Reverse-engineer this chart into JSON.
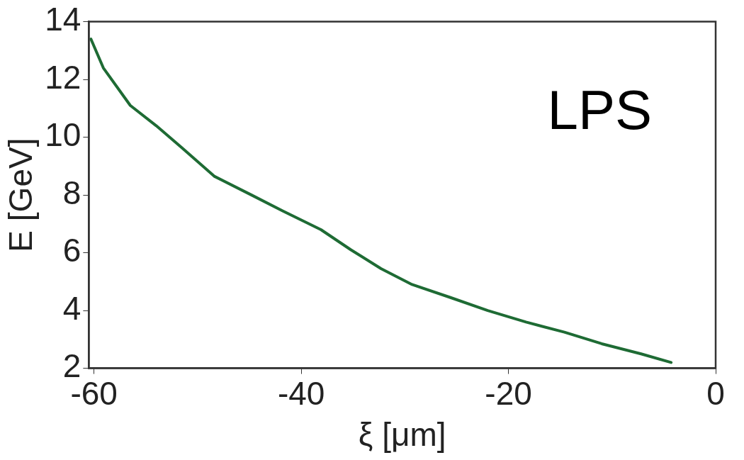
{
  "chart_data": {
    "type": "line",
    "xlabel": "ξ [μm]",
    "ylabel": "E [GeV]",
    "annotations": [
      "LPS"
    ],
    "x": [
      -60.3,
      -59.1,
      -56.5,
      -54,
      -51.4,
      -48.4,
      -44.8,
      -41.8,
      -38.1,
      -35.2,
      -32.3,
      -29.3,
      -25.6,
      -22,
      -18.3,
      -14.6,
      -11,
      -7.2,
      -4.3
    ],
    "series": [
      {
        "color": "#1e6b34",
        "values": [
          13.4,
          12.4,
          11.1,
          10.4,
          9.6,
          8.65,
          8.0,
          7.45,
          6.8,
          6.1,
          5.45,
          4.9,
          4.45,
          4.0,
          3.6,
          3.25,
          2.85,
          2.5,
          2.2
        ]
      }
    ],
    "xlim": [
      -60.5,
      0
    ],
    "xticks": [
      -60,
      -40,
      -20,
      0
    ],
    "ylim": [
      2,
      14
    ],
    "yticks": [
      2,
      4,
      6,
      8,
      10,
      12,
      14
    ],
    "grid": false,
    "legend": false,
    "marker": "none",
    "line_style": "solid"
  }
}
